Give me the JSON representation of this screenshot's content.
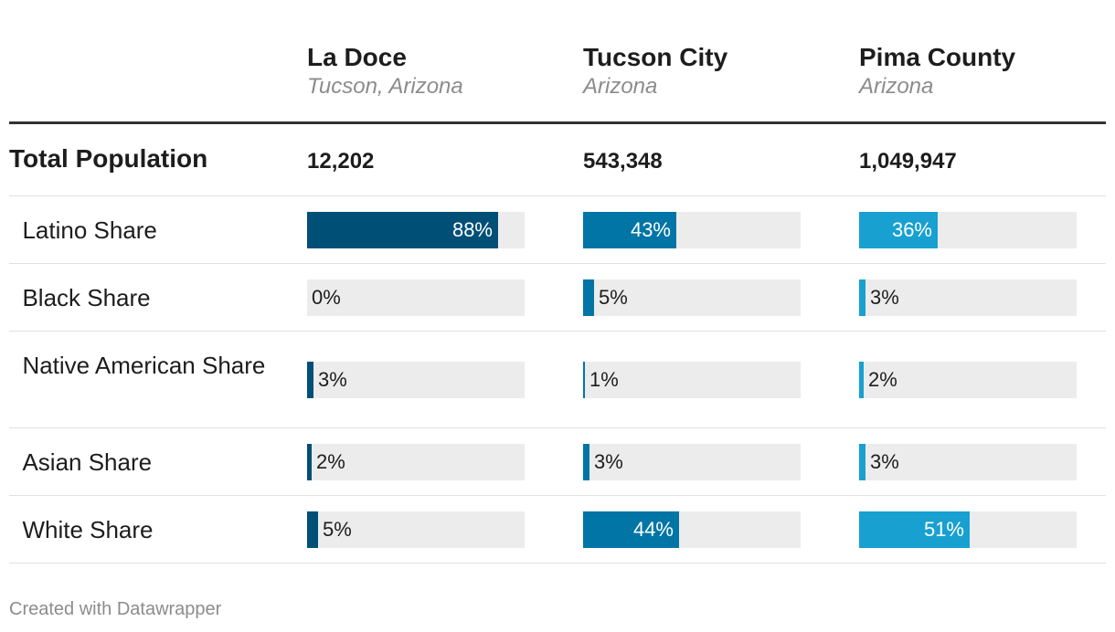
{
  "columns": [
    {
      "title": "La Doce",
      "subtitle": "Tucson, Arizona",
      "color": "#004f77"
    },
    {
      "title": "Tucson City",
      "subtitle": "Arizona",
      "color": "#0075a6"
    },
    {
      "title": "Pima County",
      "subtitle": "Arizona",
      "color": "#18a0d1"
    }
  ],
  "total_row": {
    "label": "Total Population",
    "values": [
      "12,202",
      "543,348",
      "1,049,947"
    ]
  },
  "footer": "Created with Datawrapper",
  "chart_data": {
    "type": "table",
    "categories": [
      "Latino Share",
      "Black Share",
      "Native American Share",
      "Asian Share",
      "White Share"
    ],
    "series": [
      {
        "name": "La Doce",
        "values": [
          88,
          0,
          3,
          2,
          5
        ],
        "labels": [
          "88%",
          "0%",
          "3%",
          "2%",
          "5%"
        ]
      },
      {
        "name": "Tucson City",
        "values": [
          43,
          5,
          1,
          3,
          44
        ],
        "labels": [
          "43%",
          "5%",
          "1%",
          "3%",
          "44%"
        ]
      },
      {
        "name": "Pima County",
        "values": [
          36,
          3,
          2,
          3,
          51
        ],
        "labels": [
          "36%",
          "3%",
          "2%",
          "3%",
          "51%"
        ]
      }
    ],
    "ylim": [
      0,
      100
    ]
  }
}
